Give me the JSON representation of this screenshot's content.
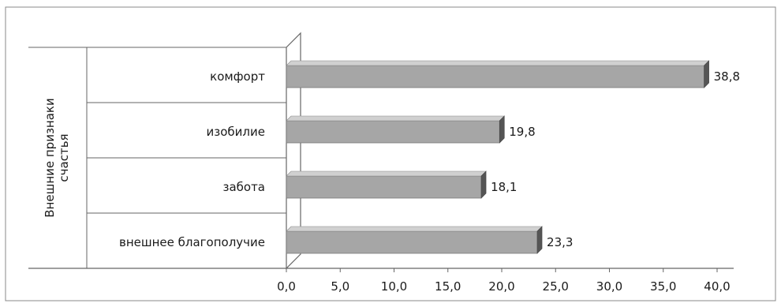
{
  "chart_data": {
    "type": "bar",
    "orientation": "horizontal",
    "style": "3d",
    "group_label_lines": [
      "Внешние признаки",
      "счастья"
    ],
    "categories": [
      "комфорт",
      "изобилие",
      "забота",
      "внешнее  благополучие"
    ],
    "values": [
      38.8,
      19.8,
      18.1,
      23.3
    ],
    "value_labels": [
      "38,8",
      "19,8",
      "18,1",
      "23,3"
    ],
    "xlim": [
      0,
      40
    ],
    "xticks": [
      0,
      5,
      10,
      15,
      20,
      25,
      30,
      35,
      40
    ],
    "xtick_labels": [
      "0,0",
      "5,0",
      "10,0",
      "15,0",
      "20,0",
      "25,0",
      "30,0",
      "35,0",
      "40,0"
    ],
    "grid": false,
    "legend": "none",
    "colors": {
      "bar_front": "#a6a6a6",
      "bar_top": "#d0d0d0",
      "bar_side": "#555555",
      "axis": "#666666",
      "frame": "#888888"
    }
  }
}
